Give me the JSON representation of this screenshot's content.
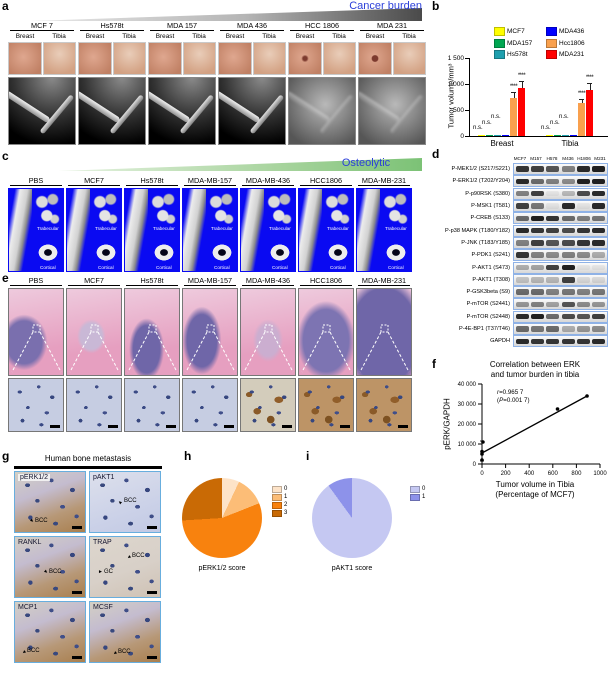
{
  "panel_a": {
    "label": "a",
    "banner": "Cancer burden",
    "site_labels": [
      "Breast",
      "Tibia"
    ],
    "columns": [
      {
        "name": "MCF 7"
      },
      {
        "name": "Hs578t"
      },
      {
        "name": "MDA 157"
      },
      {
        "name": "MDA 436"
      },
      {
        "name": "HCC 1806"
      },
      {
        "name": "MDA 231"
      }
    ]
  },
  "panel_b": {
    "label": "b",
    "ylabel": "Tumor volume/mm³",
    "yticks": [
      "0",
      "500",
      "1 000",
      "1 500"
    ],
    "ns_label": "n.s."
  },
  "panel_c": {
    "label": "c",
    "banner": "Osteolytic",
    "columns": [
      "PBS",
      "MCF7",
      "Hs578t",
      "MDA-MB-157",
      "MDA-MB-436",
      "HCC1806",
      "MDA-MB-231"
    ],
    "region_labels": [
      "Trabecular",
      "Cortical"
    ]
  },
  "panel_d": {
    "label": "d",
    "lanes": [
      "MCF7",
      "M157",
      "H578",
      "M436",
      "H1806",
      "M231"
    ],
    "rows": [
      {
        "name": "P-MEK1/2 (S217/S221)",
        "bands": [
          0.85,
          0.8,
          0.7,
          0.5,
          0.9,
          0.95
        ]
      },
      {
        "name": "P-ERK1/2 (T202/Y204)",
        "bands": [
          0.9,
          0.6,
          0.5,
          0.45,
          0.95,
          0.95
        ]
      },
      {
        "name": "P-p90RSK (S380)",
        "bands": [
          0.5,
          0.8,
          0.05,
          0.25,
          0.75,
          0.9
        ]
      },
      {
        "name": "P-MSK1 (T581)",
        "bands": [
          0.8,
          0.55,
          0.05,
          0.9,
          0.05,
          0.9
        ]
      },
      {
        "name": "P-CREB (S133)",
        "bands": [
          0.6,
          0.95,
          0.85,
          0.6,
          0.5,
          0.55
        ]
      },
      {
        "name": "P-p38 MAPK (T180/Y182)",
        "bands": [
          0.9,
          0.85,
          0.8,
          0.75,
          0.85,
          0.9
        ]
      },
      {
        "name": "P-JNK (T183/Y185)",
        "bands": [
          0.5,
          0.8,
          0.7,
          0.75,
          0.85,
          0.9
        ]
      },
      {
        "name": "P-PDK1 (S241)",
        "bands": [
          0.85,
          0.5,
          0.45,
          0.5,
          0.45,
          0.3
        ]
      },
      {
        "name": "P-AKT1 (S473)",
        "bands": [
          0.3,
          0.35,
          0.8,
          0.95,
          0.05,
          0.05
        ]
      },
      {
        "name": "P-AKT1 (T308)",
        "bands": [
          0.2,
          0.25,
          0.25,
          0.8,
          0.1,
          0.1
        ]
      },
      {
        "name": "P-GSK3beta (S9)",
        "bands": [
          0.6,
          0.6,
          0.5,
          0.55,
          0.5,
          0.55
        ]
      },
      {
        "name": "P-mTOR (S2441)",
        "bands": [
          0.4,
          0.5,
          0.35,
          0.7,
          0.45,
          0.4
        ]
      },
      {
        "name": "P-mTOR (S2448)",
        "bands": [
          0.9,
          0.95,
          0.6,
          0.75,
          0.7,
          0.8
        ]
      },
      {
        "name": "P-4E-BP1 (T37/T46)",
        "bands": [
          0.6,
          0.55,
          0.6,
          0.3,
          0.4,
          0.45
        ]
      },
      {
        "name": "GAPDH",
        "bands": [
          0.9,
          0.85,
          0.85,
          0.85,
          0.85,
          0.9
        ]
      }
    ]
  },
  "panel_e": {
    "label": "e",
    "columns": [
      {
        "name": "PBS",
        "stain": "blue"
      },
      {
        "name": "MCF7",
        "stain": "blue"
      },
      {
        "name": "Hs578t",
        "stain": "blue"
      },
      {
        "name": "MDA-MB-157",
        "stain": "blue"
      },
      {
        "name": "MDA-MB-436",
        "stain": "mixed"
      },
      {
        "name": "HCC1806",
        "stain": "brown"
      },
      {
        "name": "MDA-MB-231",
        "stain": "brown"
      }
    ]
  },
  "panel_f": {
    "label": "f",
    "title_line1": "Correlation between ERK",
    "title_line2": "and tumor burden in tibia",
    "annotation_line1": "r=0.965 7",
    "annotation_line2": "(P=0.001 7)",
    "ylabel": "pERK/GAPDH",
    "xlabel_line1": "Tumor volume in Tibia",
    "xlabel_line2": "(Percentage of MCF7)",
    "yticks": [
      "0",
      "10 000",
      "20 000",
      "30 000",
      "40 000"
    ],
    "xticks": [
      "0",
      "200",
      "400",
      "600",
      "800",
      "1000"
    ]
  },
  "panel_g": {
    "label": "g",
    "header": "Human bone metastasis",
    "tiles": [
      {
        "name": "pERK1/2",
        "annotations": [
          "BCC"
        ],
        "tone": "brown"
      },
      {
        "name": "pAKT1",
        "annotations": [
          "BCC"
        ],
        "tone": "blue"
      },
      {
        "name": "RANKL",
        "annotations": [
          "BCC"
        ],
        "tone": "brown"
      },
      {
        "name": "TRAP",
        "annotations": [
          "BCC",
          "GC"
        ],
        "tone": "pale"
      },
      {
        "name": "MCP1",
        "annotations": [
          "BCC"
        ],
        "tone": "brown"
      },
      {
        "name": "MCSF",
        "annotations": [
          "BCC"
        ],
        "tone": "brown"
      }
    ]
  },
  "panel_h": {
    "label": "h",
    "caption": "pERK1/2 score"
  },
  "panel_i": {
    "label": "i",
    "caption": "pAKT1 score"
  },
  "chart_data": [
    {
      "id": "b",
      "type": "bar",
      "categories": [
        "Breast",
        "Tibia"
      ],
      "series": [
        {
          "name": "MCF7",
          "values": [
            5,
            8
          ],
          "color": "#ffff00",
          "errors": null,
          "significance": null
        },
        {
          "name": "MDA157",
          "values": [
            8,
            10
          ],
          "color": "#00a651",
          "errors": null,
          "significance": null
        },
        {
          "name": "Hs578t",
          "values": [
            12,
            14
          ],
          "color": "#1f9fae",
          "errors": null,
          "significance": null
        },
        {
          "name": "MDA436",
          "values": [
            10,
            12
          ],
          "color": "#0000ff",
          "errors": null,
          "significance": null
        },
        {
          "name": "Hcc1806",
          "values": [
            730,
            640
          ],
          "color": "#f9a04d",
          "errors": [
            110,
            70
          ],
          "significance": [
            "****",
            "****"
          ]
        },
        {
          "name": "MDA231",
          "values": [
            920,
            880
          ],
          "color": "#ff0000",
          "errors": [
            130,
            140
          ],
          "significance": [
            "****",
            "****"
          ]
        }
      ],
      "ylabel": "Tumor volume/mm³",
      "ylim": [
        0,
        1500
      ],
      "nonsignificant_label": "n.s.",
      "legend_position": "top"
    },
    {
      "id": "f",
      "type": "scatter",
      "title": "Correlation between ERK and tumor burden in tibia",
      "xlabel": "Tumor volume in Tibia (Percentage of MCF7)",
      "ylabel": "pERK/GAPDH",
      "r": "0.965 7",
      "P": "0.001 7",
      "points": [
        [
          0,
          2000
        ],
        [
          0,
          5000
        ],
        [
          0,
          6200
        ],
        [
          8,
          11000
        ],
        [
          640,
          27500
        ],
        [
          890,
          34000
        ]
      ],
      "fit_line": [
        [
          0,
          5500
        ],
        [
          890,
          34000
        ]
      ],
      "whisker": {
        "x": 0,
        "y_low": 1500,
        "y_high": 11500
      },
      "xlim": [
        0,
        1000
      ],
      "ylim": [
        0,
        40000
      ]
    },
    {
      "id": "h",
      "type": "pie",
      "title": "pERK1/2 score",
      "labels": [
        "0",
        "1",
        "2",
        "3"
      ],
      "values": [
        7,
        12,
        55,
        26
      ],
      "colors": [
        "#fde3c8",
        "#fcbd77",
        "#f8820e",
        "#c96a05"
      ],
      "legend_position": "right"
    },
    {
      "id": "i",
      "type": "pie",
      "title": "pAKT1 score",
      "labels": [
        "0",
        "1"
      ],
      "values": [
        90,
        10
      ],
      "colors": [
        "#c5c8f2",
        "#8d92ea"
      ],
      "legend_position": "right"
    }
  ]
}
